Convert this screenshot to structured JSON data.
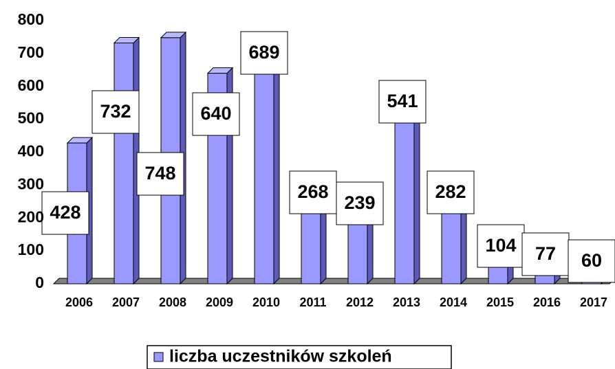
{
  "chart_data": {
    "type": "bar",
    "categories": [
      "2006",
      "2007",
      "2008",
      "2009",
      "2010",
      "2011",
      "2012",
      "2013",
      "2014",
      "2015",
      "2016",
      "2017"
    ],
    "series": [
      {
        "name": "liczba uczestników szkoleń",
        "color": "#9999ff",
        "values": [
          428,
          732,
          748,
          640,
          689,
          268,
          239,
          541,
          282,
          104,
          77,
          60
        ]
      }
    ],
    "ylim": [
      0,
      800
    ],
    "yticks": [
      0,
      100,
      200,
      300,
      400,
      500,
      600,
      700,
      800
    ],
    "legend": "bottom"
  }
}
